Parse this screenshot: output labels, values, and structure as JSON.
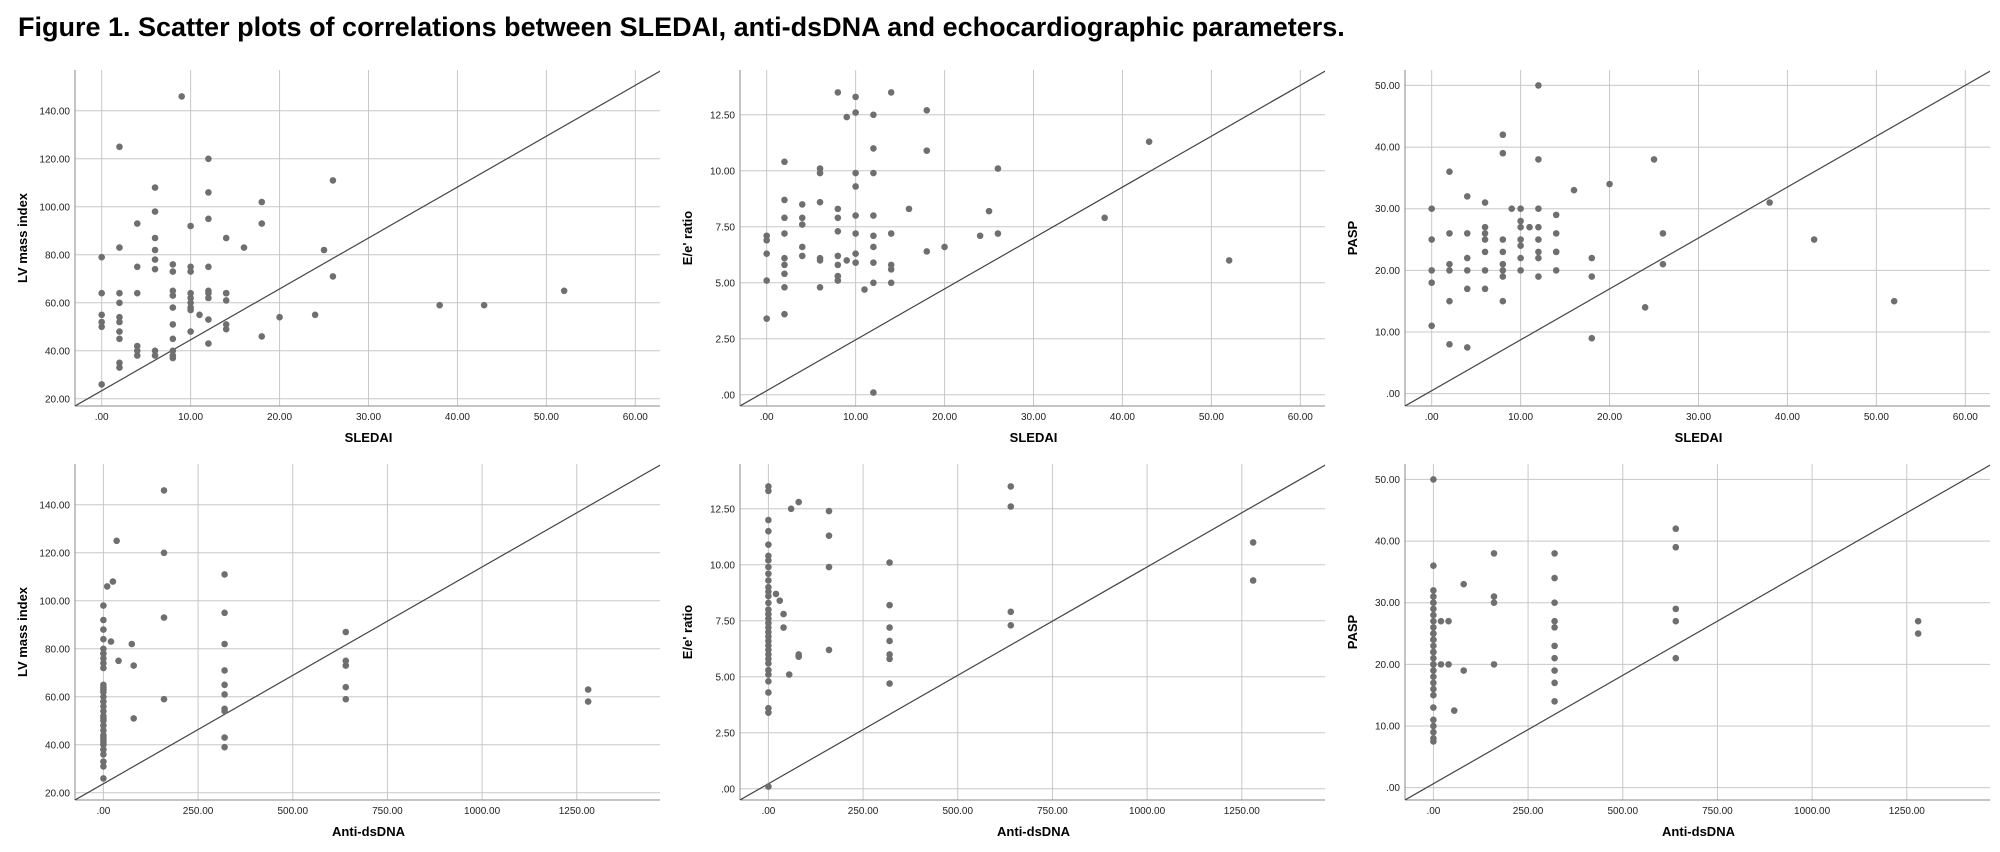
{
  "figure_title": "Figure 1. Scatter plots of correlations between SLEDAI, anti-dsDNA and echocardiographic parameters.",
  "chart_data": [
    {
      "type": "scatter",
      "xlabel": "SLEDAI",
      "ylabel": "LV mass index",
      "xlim": [
        -3,
        63
      ],
      "ylim": [
        17,
        157
      ],
      "xticks": [
        0,
        10,
        20,
        30,
        40,
        50,
        60
      ],
      "xtick_labels": [
        ".00",
        "10.00",
        "20.00",
        "30.00",
        "40.00",
        "50.00",
        "60.00"
      ],
      "yticks": [
        20,
        40,
        60,
        80,
        100,
        120,
        140
      ],
      "ytick_labels": [
        "20.00",
        "40.00",
        "60.00",
        "80.00",
        "100.00",
        "120.00",
        "140.00"
      ],
      "grid": true,
      "reference_line": true,
      "x": [
        0,
        0,
        0,
        0,
        0,
        0,
        2,
        2,
        2,
        2,
        2,
        2,
        2,
        2,
        2,
        2,
        4,
        4,
        4,
        4,
        4,
        4,
        6,
        6,
        6,
        6,
        6,
        6,
        6,
        6,
        8,
        8,
        8,
        8,
        8,
        8,
        8,
        8,
        8,
        8,
        9,
        10,
        10,
        10,
        10,
        10,
        10,
        10,
        10,
        10,
        11,
        12,
        12,
        12,
        12,
        12,
        12,
        12,
        12,
        12,
        14,
        14,
        14,
        14,
        14,
        14,
        16,
        18,
        18,
        18,
        20,
        24,
        25,
        26,
        26,
        38,
        43,
        52
      ],
      "y": [
        26,
        52,
        55,
        64,
        79,
        50,
        125,
        83,
        64,
        60,
        54,
        52,
        48,
        45,
        35,
        33,
        93,
        75,
        64,
        42,
        40,
        38,
        108,
        98,
        78,
        74,
        40,
        38,
        87,
        82,
        76,
        73,
        65,
        63,
        58,
        51,
        45,
        40,
        38,
        37,
        146,
        92,
        75,
        73,
        64,
        62,
        60,
        58,
        57,
        48,
        55,
        120,
        106,
        95,
        75,
        65,
        62,
        43,
        53,
        64,
        87,
        64,
        61,
        51,
        49,
        64,
        83,
        102,
        93,
        46,
        54,
        55,
        82,
        111,
        71,
        59,
        59,
        65
      ]
    },
    {
      "type": "scatter",
      "xlabel": "SLEDAI",
      "ylabel": "E/e' ratio",
      "xlim": [
        -3,
        63
      ],
      "ylim": [
        -0.5,
        14.5
      ],
      "xticks": [
        0,
        10,
        20,
        30,
        40,
        50,
        60
      ],
      "xtick_labels": [
        ".00",
        "10.00",
        "20.00",
        "30.00",
        "40.00",
        "50.00",
        "60.00"
      ],
      "yticks": [
        0,
        2.5,
        5,
        7.5,
        10,
        12.5
      ],
      "ytick_labels": [
        ".00",
        "2.50",
        "5.00",
        "7.50",
        "10.00",
        "12.50"
      ],
      "grid": true,
      "reference_line": true,
      "x": [
        0,
        0,
        0,
        0,
        0,
        2,
        2,
        2,
        2,
        2,
        2,
        2,
        2,
        2,
        4,
        4,
        4,
        4,
        4,
        6,
        6,
        6,
        6,
        6,
        6,
        8,
        8,
        8,
        8,
        8,
        8,
        8,
        8,
        9,
        9,
        10,
        10,
        10,
        10,
        10,
        10,
        10,
        10,
        11,
        12,
        12,
        12,
        12,
        12,
        12,
        12,
        12,
        12,
        14,
        14,
        14,
        14,
        14,
        16,
        18,
        18,
        18,
        20,
        24,
        25,
        26,
        26,
        38,
        43,
        52
      ],
      "y": [
        3.4,
        5.1,
        6.3,
        6.9,
        7.1,
        10.4,
        8.7,
        7.9,
        7.2,
        6.1,
        5.8,
        5.4,
        4.8,
        3.6,
        8.5,
        7.9,
        7.6,
        6.6,
        6.2,
        10.1,
        9.9,
        8.6,
        6.1,
        6.0,
        4.8,
        13.5,
        8.3,
        7.9,
        7.3,
        6.2,
        5.8,
        5.3,
        5.1,
        12.4,
        6.0,
        13.3,
        12.6,
        9.9,
        9.3,
        8.0,
        7.2,
        6.3,
        5.9,
        4.7,
        12.5,
        11.0,
        9.9,
        8.0,
        7.1,
        6.6,
        5.9,
        5.0,
        0.1,
        13.5,
        7.2,
        5.8,
        5.6,
        5.0,
        8.3,
        12.7,
        10.9,
        6.4,
        6.6,
        7.1,
        8.2,
        10.1,
        7.2,
        7.9,
        11.3,
        6.0
      ]
    },
    {
      "type": "scatter",
      "xlabel": "SLEDAI",
      "ylabel": "PASP",
      "xlim": [
        -3,
        63
      ],
      "ylim": [
        -2,
        52.5
      ],
      "xticks": [
        0,
        10,
        20,
        30,
        40,
        50,
        60
      ],
      "xtick_labels": [
        ".00",
        "10.00",
        "20.00",
        "30.00",
        "40.00",
        "50.00",
        "60.00"
      ],
      "yticks": [
        0,
        10,
        20,
        30,
        40,
        50
      ],
      "ytick_labels": [
        ".00",
        "10.00",
        "20.00",
        "30.00",
        "40.00",
        "50.00"
      ],
      "grid": true,
      "reference_line": true,
      "x": [
        0,
        0,
        0,
        0,
        0,
        2,
        2,
        2,
        2,
        2,
        2,
        4,
        4,
        4,
        4,
        4,
        4,
        6,
        6,
        6,
        6,
        6,
        6,
        6,
        8,
        8,
        8,
        8,
        8,
        8,
        8,
        8,
        9,
        10,
        10,
        10,
        10,
        10,
        10,
        10,
        11,
        12,
        12,
        12,
        12,
        12,
        12,
        12,
        12,
        14,
        14,
        14,
        14,
        14,
        16,
        18,
        18,
        18,
        20,
        24,
        25,
        26,
        26,
        38,
        43,
        52
      ],
      "y": [
        30,
        25,
        20,
        18,
        11,
        36,
        26,
        21,
        20,
        15,
        8,
        32,
        26,
        22,
        20,
        17,
        7.5,
        31,
        27,
        26,
        25,
        23,
        20,
        17,
        42,
        39,
        25,
        23,
        21,
        20,
        19,
        15,
        30,
        30,
        28,
        27,
        25,
        24,
        22,
        20,
        27,
        38,
        30,
        27,
        25,
        23,
        22,
        19,
        50,
        29,
        26,
        23,
        20,
        23,
        33,
        22,
        9,
        19,
        34,
        14,
        38,
        26,
        21,
        31,
        25,
        15
      ]
    },
    {
      "type": "scatter",
      "xlabel": "Anti-dsDNA",
      "ylabel": "LV mass index",
      "xlim": [
        -75,
        1475
      ],
      "ylim": [
        17,
        157
      ],
      "xticks": [
        0,
        250,
        500,
        750,
        1000,
        1250
      ],
      "xtick_labels": [
        ".00",
        "250.00",
        "500.00",
        "750.00",
        "1000.00",
        "1250.00"
      ],
      "yticks": [
        20,
        40,
        60,
        80,
        100,
        120,
        140
      ],
      "ytick_labels": [
        "20.00",
        "40.00",
        "60.00",
        "80.00",
        "100.00",
        "120.00",
        "140.00"
      ],
      "grid": true,
      "reference_line": true,
      "x": [
        0,
        0,
        0,
        0,
        0,
        0,
        0,
        0,
        0,
        0,
        0,
        0,
        0,
        0,
        0,
        0,
        0,
        0,
        0,
        0,
        0,
        0,
        0,
        0,
        0,
        0,
        0,
        0,
        0,
        0,
        0,
        0,
        10,
        20,
        25,
        35,
        40,
        75,
        80,
        80,
        160,
        160,
        160,
        160,
        320,
        320,
        320,
        320,
        320,
        320,
        320,
        320,
        320,
        320,
        640,
        640,
        640,
        640,
        640,
        1280,
        1280
      ],
      "y": [
        26,
        31,
        33,
        36,
        38,
        40,
        41,
        42,
        43,
        44,
        46,
        48,
        50,
        51,
        52,
        54,
        56,
        58,
        60,
        62,
        63,
        64,
        65,
        72,
        74,
        76,
        78,
        80,
        84,
        88,
        92,
        98,
        106,
        83,
        108,
        125,
        75,
        82,
        73,
        51,
        146,
        120,
        93,
        59,
        111,
        95,
        82,
        71,
        65,
        61,
        55,
        43,
        39,
        54,
        87,
        75,
        73,
        64,
        59,
        63,
        58
      ]
    },
    {
      "type": "scatter",
      "xlabel": "Anti-dsDNA",
      "ylabel": "E/e' ratio",
      "xlim": [
        -75,
        1475
      ],
      "ylim": [
        -0.5,
        14.5
      ],
      "xticks": [
        0,
        250,
        500,
        750,
        1000,
        1250
      ],
      "xtick_labels": [
        ".00",
        "250.00",
        "500.00",
        "750.00",
        "1000.00",
        "1250.00"
      ],
      "yticks": [
        0,
        2.5,
        5,
        7.5,
        10,
        12.5
      ],
      "ytick_labels": [
        ".00",
        "2.50",
        "5.00",
        "7.50",
        "10.00",
        "12.50"
      ],
      "grid": true,
      "reference_line": true,
      "x": [
        0,
        0,
        0,
        0,
        0,
        0,
        0,
        0,
        0,
        0,
        0,
        0,
        0,
        0,
        0,
        0,
        0,
        0,
        0,
        0,
        0,
        0,
        0,
        0,
        0,
        0,
        0,
        0,
        0,
        0,
        0,
        0,
        0,
        0,
        20,
        30,
        40,
        40,
        55,
        60,
        80,
        80,
        80,
        160,
        160,
        160,
        160,
        320,
        320,
        320,
        320,
        320,
        320,
        320,
        640,
        640,
        640,
        640,
        1280,
        1280
      ],
      "y": [
        0.1,
        3.4,
        3.6,
        4.3,
        4.8,
        5.1,
        5.3,
        5.6,
        5.8,
        6.0,
        6.2,
        6.4,
        6.6,
        6.8,
        7.0,
        7.2,
        7.4,
        7.6,
        7.8,
        8.0,
        8.3,
        8.6,
        8.8,
        9.0,
        9.3,
        9.6,
        9.9,
        10.2,
        10.4,
        10.9,
        11.5,
        12.0,
        13.3,
        13.5,
        8.7,
        8.4,
        7.2,
        7.8,
        5.1,
        12.5,
        6.0,
        5.9,
        12.8,
        12.4,
        11.3,
        9.9,
        6.2,
        10.1,
        8.2,
        7.2,
        6.6,
        6.0,
        5.8,
        4.7,
        13.5,
        12.6,
        7.9,
        7.3,
        11.0,
        9.3
      ]
    },
    {
      "type": "scatter",
      "xlabel": "Anti-dsDNA",
      "ylabel": "PASP",
      "xlim": [
        -75,
        1475
      ],
      "ylim": [
        -2,
        52.5
      ],
      "xticks": [
        0,
        250,
        500,
        750,
        1000,
        1250
      ],
      "xtick_labels": [
        ".00",
        "250.00",
        "500.00",
        "750.00",
        "1000.00",
        "1250.00"
      ],
      "yticks": [
        0,
        10,
        20,
        30,
        40,
        50
      ],
      "ytick_labels": [
        ".00",
        "10.00",
        "20.00",
        "30.00",
        "40.00",
        "50.00"
      ],
      "grid": true,
      "reference_line": true,
      "x": [
        0,
        0,
        0,
        0,
        0,
        0,
        0,
        0,
        0,
        0,
        0,
        0,
        0,
        0,
        0,
        0,
        0,
        0,
        0,
        0,
        0,
        0,
        0,
        0,
        0,
        0,
        0,
        0,
        0,
        0,
        0,
        20,
        20,
        40,
        40,
        55,
        80,
        80,
        160,
        160,
        160,
        160,
        320,
        320,
        320,
        320,
        320,
        320,
        320,
        320,
        320,
        320,
        640,
        640,
        640,
        640,
        640,
        1280,
        1280
      ],
      "y": [
        8,
        9,
        10,
        11,
        13,
        15,
        16,
        17,
        18,
        19,
        20,
        21,
        22,
        23,
        24,
        25,
        26,
        27,
        28,
        29,
        30,
        31,
        32,
        36,
        50,
        30,
        25,
        24,
        22,
        20,
        7.5,
        27,
        20,
        27,
        20,
        12.5,
        33,
        19,
        38,
        31,
        30,
        20,
        38,
        34,
        30,
        27,
        26,
        23,
        19,
        17,
        14,
        21,
        42,
        39,
        29,
        27,
        21,
        27,
        25
      ]
    }
  ]
}
